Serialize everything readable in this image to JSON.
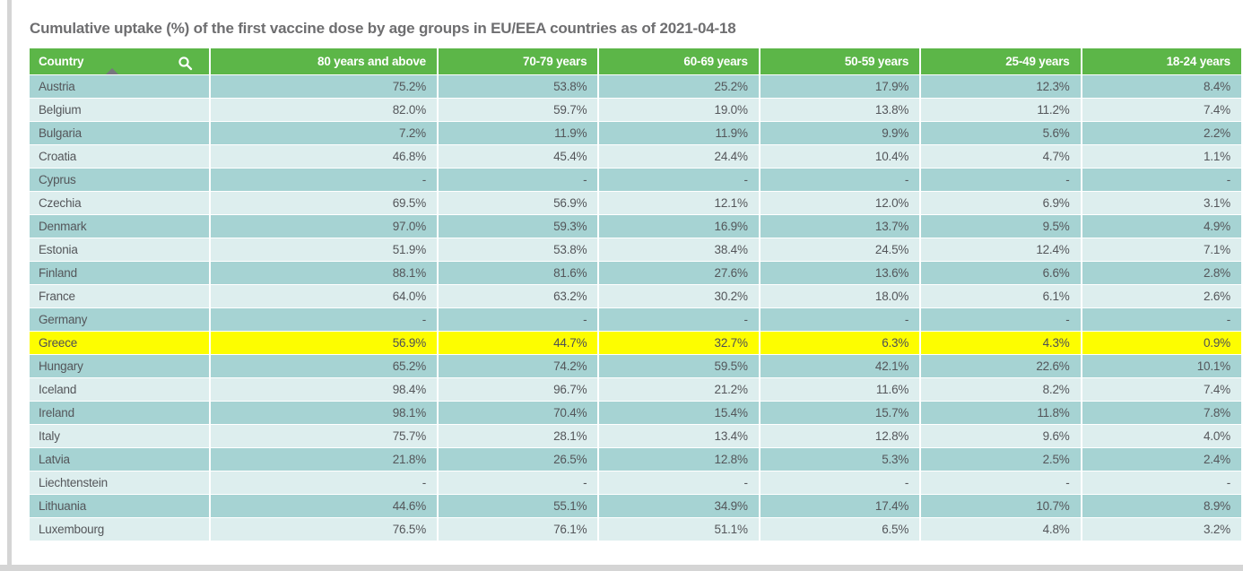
{
  "page": {
    "title": "Cumulative uptake (%) of the first vaccine dose by age groups in EU/EEA countries as of 2021-04-18"
  },
  "table": {
    "columns": [
      "Country",
      "80 years and above",
      "70-79 years",
      "60-69 years",
      "50-59 years",
      "25-49 years",
      "18-24 years"
    ],
    "sort": {
      "column": "Country",
      "direction": "ascending"
    },
    "country_header_icons": [
      "search-icon",
      "sort-ascending-icon"
    ],
    "highlighted_row": "Greece",
    "empty_value": "-",
    "rows": [
      {
        "country": "Austria",
        "values": [
          "75.2%",
          "53.8%",
          "25.2%",
          "17.9%",
          "12.3%",
          "8.4%"
        ]
      },
      {
        "country": "Belgium",
        "values": [
          "82.0%",
          "59.7%",
          "19.0%",
          "13.8%",
          "11.2%",
          "7.4%"
        ]
      },
      {
        "country": "Bulgaria",
        "values": [
          "7.2%",
          "11.9%",
          "11.9%",
          "9.9%",
          "5.6%",
          "2.2%"
        ]
      },
      {
        "country": "Croatia",
        "values": [
          "46.8%",
          "45.4%",
          "24.4%",
          "10.4%",
          "4.7%",
          "1.1%"
        ]
      },
      {
        "country": "Cyprus",
        "values": [
          "-",
          "-",
          "-",
          "-",
          "-",
          "-"
        ]
      },
      {
        "country": "Czechia",
        "values": [
          "69.5%",
          "56.9%",
          "12.1%",
          "12.0%",
          "6.9%",
          "3.1%"
        ]
      },
      {
        "country": "Denmark",
        "values": [
          "97.0%",
          "59.3%",
          "16.9%",
          "13.7%",
          "9.5%",
          "4.9%"
        ]
      },
      {
        "country": "Estonia",
        "values": [
          "51.9%",
          "53.8%",
          "38.4%",
          "24.5%",
          "12.4%",
          "7.1%"
        ]
      },
      {
        "country": "Finland",
        "values": [
          "88.1%",
          "81.6%",
          "27.6%",
          "13.6%",
          "6.6%",
          "2.8%"
        ]
      },
      {
        "country": "France",
        "values": [
          "64.0%",
          "63.2%",
          "30.2%",
          "18.0%",
          "6.1%",
          "2.6%"
        ]
      },
      {
        "country": "Germany",
        "values": [
          "-",
          "-",
          "-",
          "-",
          "-",
          "-"
        ]
      },
      {
        "country": "Greece",
        "values": [
          "56.9%",
          "44.7%",
          "32.7%",
          "6.3%",
          "4.3%",
          "0.9%"
        ]
      },
      {
        "country": "Hungary",
        "values": [
          "65.2%",
          "74.2%",
          "59.5%",
          "42.1%",
          "22.6%",
          "10.1%"
        ]
      },
      {
        "country": "Iceland",
        "values": [
          "98.4%",
          "96.7%",
          "21.2%",
          "11.6%",
          "8.2%",
          "7.4%"
        ]
      },
      {
        "country": "Ireland",
        "values": [
          "98.1%",
          "70.4%",
          "15.4%",
          "15.7%",
          "11.8%",
          "7.8%"
        ]
      },
      {
        "country": "Italy",
        "values": [
          "75.7%",
          "28.1%",
          "13.4%",
          "12.8%",
          "9.6%",
          "4.0%"
        ]
      },
      {
        "country": "Latvia",
        "values": [
          "21.8%",
          "26.5%",
          "12.8%",
          "5.3%",
          "2.5%",
          "2.4%"
        ]
      },
      {
        "country": "Liechtenstein",
        "values": [
          "-",
          "-",
          "-",
          "-",
          "-",
          "-"
        ]
      },
      {
        "country": "Lithuania",
        "values": [
          "44.6%",
          "55.1%",
          "34.9%",
          "17.4%",
          "10.7%",
          "8.9%"
        ]
      },
      {
        "country": "Luxembourg",
        "values": [
          "76.5%",
          "76.1%",
          "51.1%",
          "6.5%",
          "4.8%",
          "3.2%"
        ]
      }
    ]
  },
  "colors": {
    "header_green": "#5cb648",
    "row_dark": "#a6d3d3",
    "row_light": "#ddeeee",
    "highlight_yellow": "#fdfd00",
    "header_text": "#ffffff",
    "cell_text": "#54565a",
    "title_text": "#6e6e70",
    "edge_gray": "#d5d5d5"
  }
}
